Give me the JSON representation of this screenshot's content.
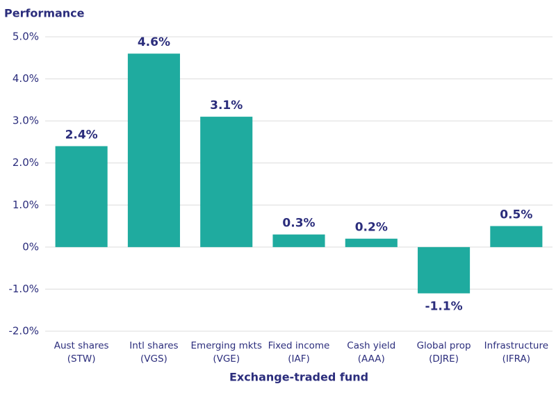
{
  "chart_data": {
    "type": "bar",
    "title": "Performance",
    "x_label": "Exchange-traded fund",
    "categories": [
      [
        "Aust shares",
        "(STW)"
      ],
      [
        "Intl shares",
        "(VGS)"
      ],
      [
        "Emerging mkts",
        "(VGE)"
      ],
      [
        "Fixed income",
        "(IAF)"
      ],
      [
        "Cash yield",
        "(AAA)"
      ],
      [
        "Global prop",
        "(DJRE)"
      ],
      [
        "Infrastructure",
        "(IFRA)"
      ]
    ],
    "values": [
      2.4,
      4.6,
      3.1,
      0.3,
      0.2,
      -1.1,
      0.5
    ],
    "value_labels": [
      "2.4%",
      "4.6%",
      "3.1%",
      "0.3%",
      "0.2%",
      "-1.1%",
      "0.5%"
    ],
    "color": "#1fab9f",
    "ylim": [
      -2,
      5
    ],
    "yticks": [
      {
        "value": -2,
        "label": "-2.0%"
      },
      {
        "value": -1,
        "label": "-1.0%"
      },
      {
        "value": 0,
        "label": "0%"
      },
      {
        "value": 1,
        "label": "1.0%"
      },
      {
        "value": 2,
        "label": "2.0%"
      },
      {
        "value": 3,
        "label": "3.0%"
      },
      {
        "value": 4,
        "label": "4.0%"
      },
      {
        "value": 5,
        "label": "5.0%"
      }
    ],
    "grid": true
  }
}
